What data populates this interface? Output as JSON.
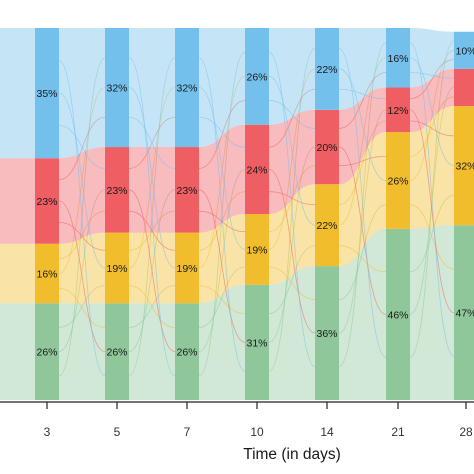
{
  "chart_data": {
    "type": "bar",
    "stacking": "percent",
    "overlay": "alluvial flows between adjacent time points",
    "xlabel": "Time (in days)",
    "categories": [
      "3",
      "5",
      "7",
      "10",
      "14",
      "21",
      "28"
    ],
    "series": [
      {
        "color": "#8fc79a",
        "values": [
          26,
          26,
          26,
          31,
          36,
          46,
          47
        ],
        "labels": [
          "26%",
          "26%",
          "26%",
          "31%",
          "36%",
          "46%",
          "47%"
        ]
      },
      {
        "color": "#f2bd2c",
        "values": [
          16,
          19,
          19,
          19,
          22,
          26,
          32
        ],
        "labels": [
          "16%",
          "19%",
          "19%",
          "19%",
          "22%",
          "26%",
          "32%"
        ]
      },
      {
        "color": "#ee5e63",
        "values": [
          23,
          23,
          23,
          24,
          20,
          12,
          10
        ],
        "labels": [
          "23%",
          "23%",
          "23%",
          "24%",
          "20%",
          "12%",
          ""
        ]
      },
      {
        "color": "#74c0ec",
        "values": [
          35,
          32,
          32,
          26,
          22,
          16,
          10
        ],
        "labels": [
          "35%",
          "32%",
          "32%",
          "26%",
          "22%",
          "16%",
          "10%"
        ]
      }
    ],
    "legend": "none",
    "grid": false
  }
}
